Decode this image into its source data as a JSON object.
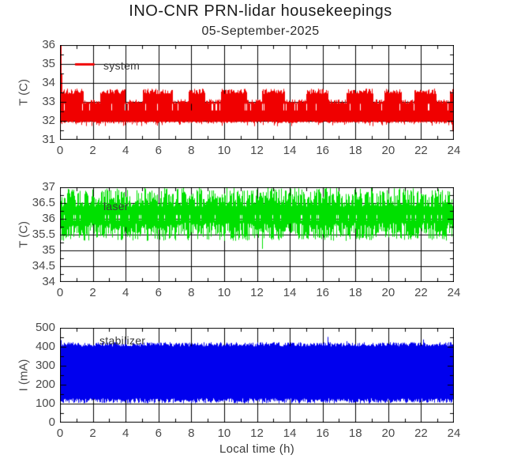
{
  "header": {
    "title": "INO-CNR PRN-lidar housekeepings",
    "subtitle": "05-September-2025"
  },
  "x_axis": {
    "label": "Local time (h)",
    "min": 0,
    "max": 24,
    "major_tick_step": 2,
    "minor_tick_step": 1,
    "tick_values": [
      0,
      2,
      4,
      6,
      8,
      10,
      12,
      14,
      16,
      18,
      20,
      22,
      24
    ],
    "tick_labels": [
      "0",
      "2",
      "4",
      "6",
      "8",
      "10",
      "12",
      "14",
      "16",
      "18",
      "20",
      "22",
      "24"
    ]
  },
  "colors": {
    "axis": "#000000",
    "tick_text": "#4a4a4a",
    "series_system": "#f00000",
    "series_laser": "#00e000",
    "series_stabilizer": "#0000ee"
  },
  "chart_data": [
    {
      "type": "line",
      "name": "system temperature",
      "legend_label": "system",
      "color": "#f00000",
      "ylabel": "T (C)",
      "ylim": [
        31,
        36
      ],
      "ytick_values": [
        31,
        32,
        33,
        34,
        35,
        36
      ],
      "ytick_labels": [
        "31",
        "32",
        "33",
        "34",
        "35",
        "36"
      ],
      "x_range_hours": [
        0,
        24
      ],
      "grid": true,
      "legend": {
        "x_hours": 2.65,
        "y_value": 35,
        "line_from_h": 0.92,
        "line_to_h": 2.1,
        "show_line_sample": true
      },
      "signal": {
        "kind": "cycling-band",
        "description": "thermostat-like oscillation between ~32.0 and ~33.6 C; upper level alternates between ~33.5 (on blocks) and ~33.0 (off blocks); occasional dips to ~31.7; startup spike to 36 at t=0; dip to ~31.45 at t=24",
        "seed": 11,
        "base_low": 32.0,
        "low_jitter": 0.12,
        "high_on": 33.42,
        "high_on_jitter": 0.28,
        "high_off": 32.92,
        "high_off_jitter": 0.22,
        "dip_low": 31.72,
        "dip_prob": 0.1,
        "split_prob": 0.05,
        "split_gap": [
          32.9,
          32.55
        ],
        "on_len_hours": [
          0.9,
          2.0
        ],
        "off_len_hours": [
          0.5,
          1.4
        ],
        "startup_spike": 36.0,
        "startup_spike2": 34.5,
        "end_dip": 31.45
      }
    },
    {
      "type": "line",
      "name": "laser temperature",
      "legend_label": "laser",
      "color": "#00e000",
      "ylabel": "T (C)",
      "ylim": [
        34,
        37
      ],
      "ytick_values": [
        34,
        34.5,
        35,
        35.5,
        36,
        36.5,
        37
      ],
      "ytick_labels": [
        "34",
        "34.5",
        "35",
        "35.5",
        "36",
        "36.5",
        "37"
      ],
      "x_range_hours": [
        0,
        24
      ],
      "grid": true,
      "legend": {
        "x_hours": 2.65,
        "y_value": 36.4,
        "show_line_sample": false
      },
      "signal": {
        "kind": "noisy-band",
        "description": "dense noisy band between ~35.3 and ~37.0 C, stable all day; single dip to ~35.05 near 12.35 h",
        "seed": 23,
        "high_base": 36.38,
        "high_jitter": 0.6,
        "high_clamp": 36.98,
        "low_base": 35.88,
        "low_jitter": 0.58,
        "low_clamp": 35.3,
        "split_prob": 0.06,
        "split_gap": [
          36.12,
          35.95
        ],
        "spike_prob": 0,
        "spike_range": [
          0,
          0
        ],
        "anomaly": {
          "t_hours": 12.35,
          "low": 35.05
        }
      }
    },
    {
      "type": "line",
      "name": "stabilizer current",
      "legend_label": "stabilizer",
      "color": "#0000ee",
      "ylabel": "I (mA)",
      "ylim": [
        0,
        500
      ],
      "ytick_values": [
        0,
        100,
        200,
        300,
        400,
        500
      ],
      "ytick_labels": [
        "0",
        "100",
        "200",
        "300",
        "400",
        "500"
      ],
      "x_range_hours": [
        0,
        24
      ],
      "grid": true,
      "legend": {
        "x_hours": 2.5,
        "y_value": 420,
        "show_line_sample": false
      },
      "signal": {
        "kind": "noisy-band",
        "description": "dense noisy band between ~100 and ~425 mA, stable all day; occasional spikes to ~450 mA; startup spike ~435 mA at t=0",
        "seed": 37,
        "high_base": 402,
        "high_jitter": 22,
        "high_clamp": 500,
        "low_base": 128,
        "low_jitter": 26,
        "low_clamp": 100,
        "split_prob": 0,
        "spike_prob": 0.012,
        "spike_range": [
          428,
          452
        ],
        "startup_spike": 435
      }
    }
  ]
}
